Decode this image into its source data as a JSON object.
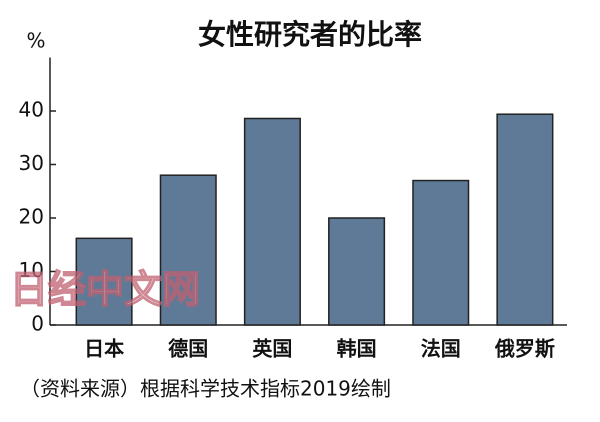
{
  "chart_data": {
    "type": "bar",
    "title": "女性研究者的比率",
    "y_unit": "%",
    "categories": [
      "日本",
      "德国",
      "英国",
      "韩国",
      "法国",
      "俄罗斯"
    ],
    "values": [
      16.2,
      28,
      38.6,
      20,
      27,
      39.4
    ],
    "color": "#5f7a96",
    "ylim": [
      0,
      50
    ],
    "yticks": [
      0,
      10,
      20,
      30,
      40
    ],
    "grid": false,
    "source": "（资料来源）根据科学技术指标2019绘制",
    "watermark": "日经中文网"
  }
}
